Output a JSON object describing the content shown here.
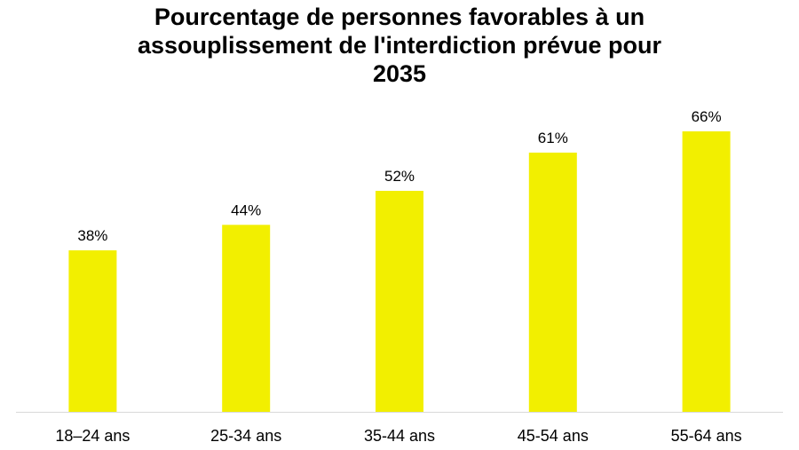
{
  "chart_data": {
    "type": "bar",
    "title_lines": [
      "Pourcentage de personnes favorables à un",
      "assouplissement de l'interdiction prévue pour",
      "2035"
    ],
    "categories": [
      "18–24 ans",
      "25-34 ans",
      "35-44 ans",
      "45-54 ans",
      "55-64 ans"
    ],
    "values": [
      38,
      44,
      52,
      61,
      66
    ],
    "value_labels": [
      "38%",
      "44%",
      "52%",
      "61%",
      "66%"
    ],
    "xlabel": "",
    "ylabel": "",
    "ylim": [
      0,
      66
    ],
    "grid": false,
    "legend": "none",
    "bar_color": "#f2ef00",
    "axis_color": "#d9d9d9"
  }
}
